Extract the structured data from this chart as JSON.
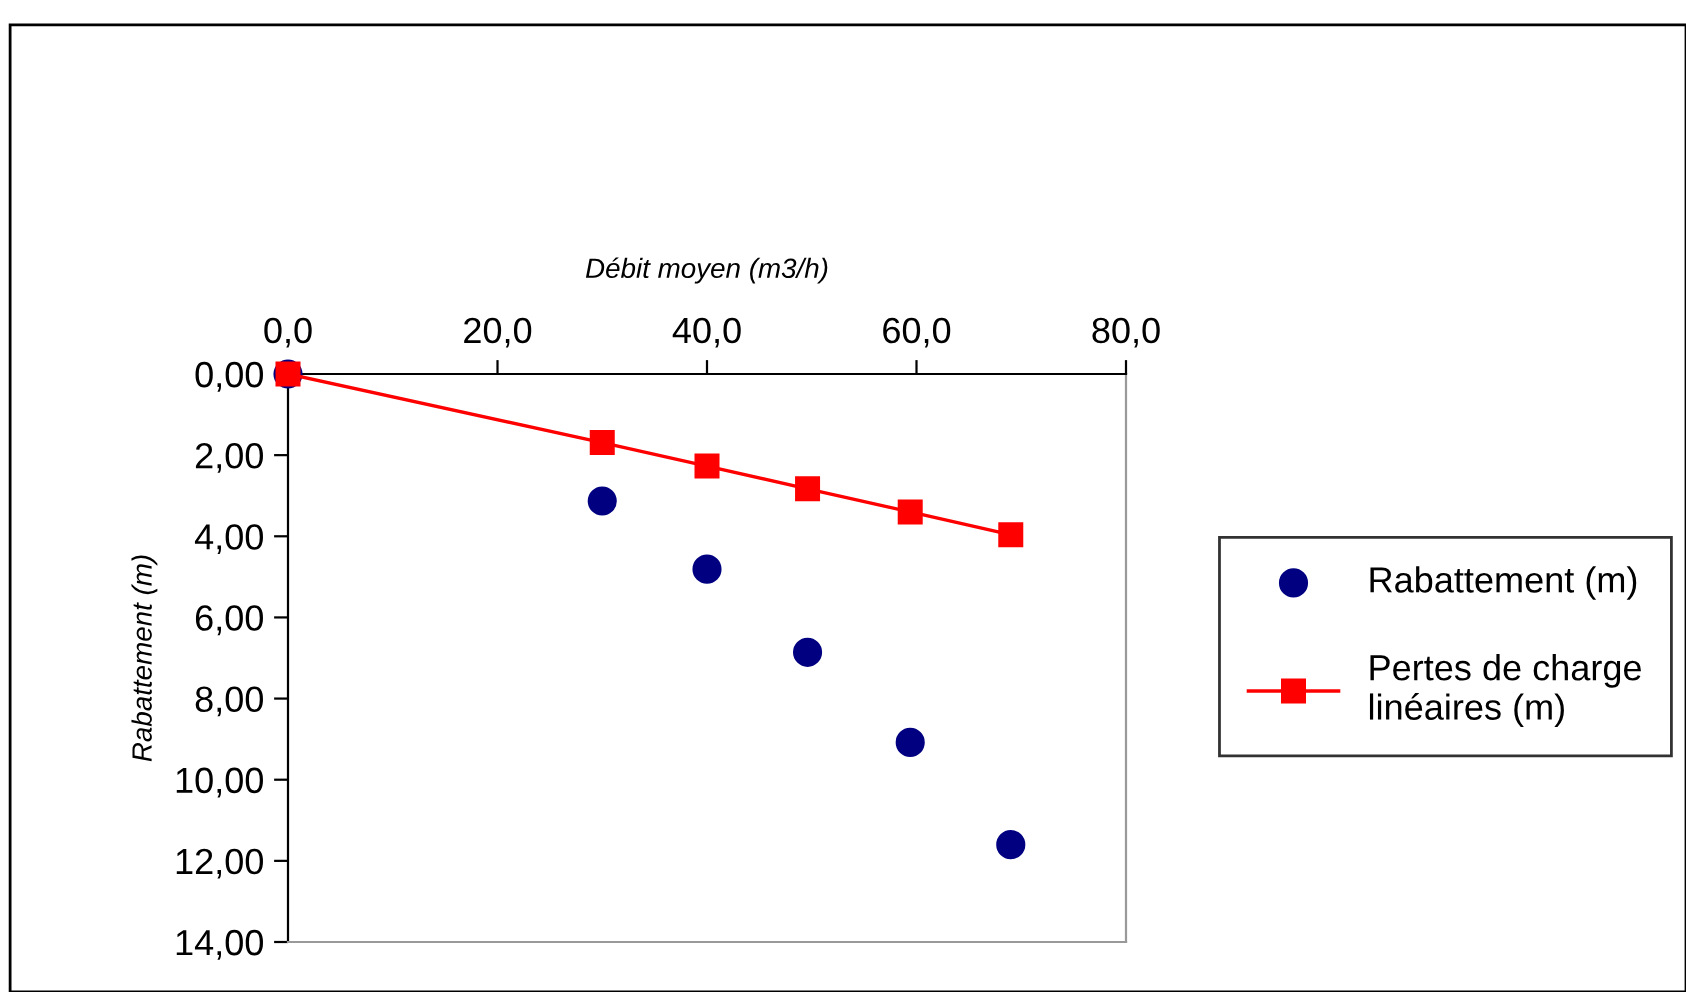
{
  "chart_data": {
    "type": "scatter",
    "xlabel": "Débit moyen (m3/h)",
    "ylabel": "Rabattement (m)",
    "xlim": [
      0,
      80
    ],
    "xticks": [
      {
        "value": 0,
        "label": "0,0"
      },
      {
        "value": 20,
        "label": "20,0"
      },
      {
        "value": 40,
        "label": "40,0"
      },
      {
        "value": 60,
        "label": "60,0"
      },
      {
        "value": 80,
        "label": "80,0"
      }
    ],
    "ylim": [
      14,
      0
    ],
    "yticks": [
      {
        "value": 0,
        "label": "0,00"
      },
      {
        "value": 2,
        "label": "2,00"
      },
      {
        "value": 4,
        "label": "4,00"
      },
      {
        "value": 6,
        "label": "6,00"
      },
      {
        "value": 8,
        "label": "8,00"
      },
      {
        "value": 10,
        "label": "10,00"
      },
      {
        "value": 12,
        "label": "12,00"
      },
      {
        "value": 14,
        "label": "14,00"
      }
    ],
    "grid": false,
    "legend": "right",
    "series": [
      {
        "name": "Rabattement (m)",
        "marker": "circle",
        "color": "#000080",
        "x": [
          0,
          30,
          40,
          49.6,
          59.4,
          69
        ],
        "values": [
          0,
          3.13,
          4.81,
          6.86,
          9.08,
          11.6
        ]
      },
      {
        "name": "Pertes de charge linéaires (m)",
        "type": "line",
        "marker": "square",
        "line_style": "solid",
        "color": "#ff0000",
        "x": [
          0,
          30,
          40,
          49.6,
          59.4,
          69
        ],
        "values": [
          0,
          1.69,
          2.27,
          2.83,
          3.4,
          3.96
        ]
      }
    ]
  }
}
